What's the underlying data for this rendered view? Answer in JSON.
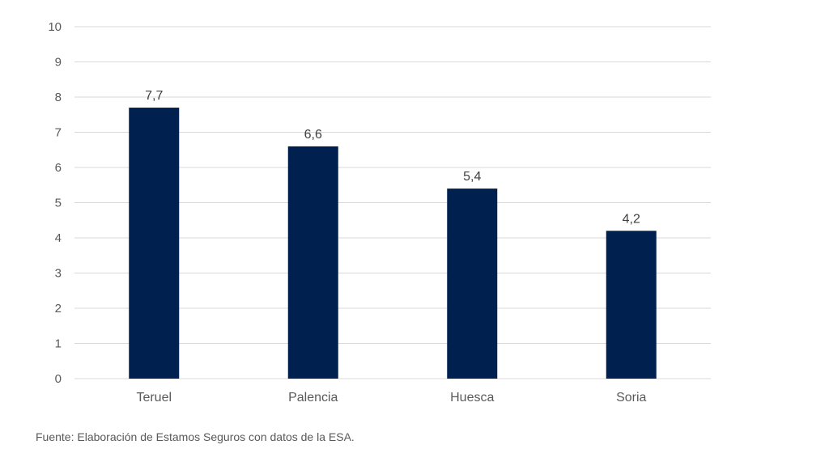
{
  "chart_data": {
    "type": "bar",
    "categories": [
      "Teruel",
      "Palencia",
      "Huesca",
      "Soria"
    ],
    "values": [
      7.7,
      6.6,
      5.4,
      4.2
    ],
    "data_labels": [
      "7,7",
      "6,6",
      "5,4",
      "4,2"
    ],
    "title": "",
    "xlabel": "",
    "ylabel": "",
    "ylim": [
      0,
      10
    ],
    "yticks": [
      0,
      1,
      2,
      3,
      4,
      5,
      6,
      7,
      8,
      9,
      10
    ],
    "grid": true,
    "legend": "none",
    "colors": {
      "bar": "#002050",
      "grid": "#d9d9d9",
      "text": "#595959"
    }
  },
  "source_note": "Fuente: Elaboración de Estamos Seguros con datos de la ESA."
}
